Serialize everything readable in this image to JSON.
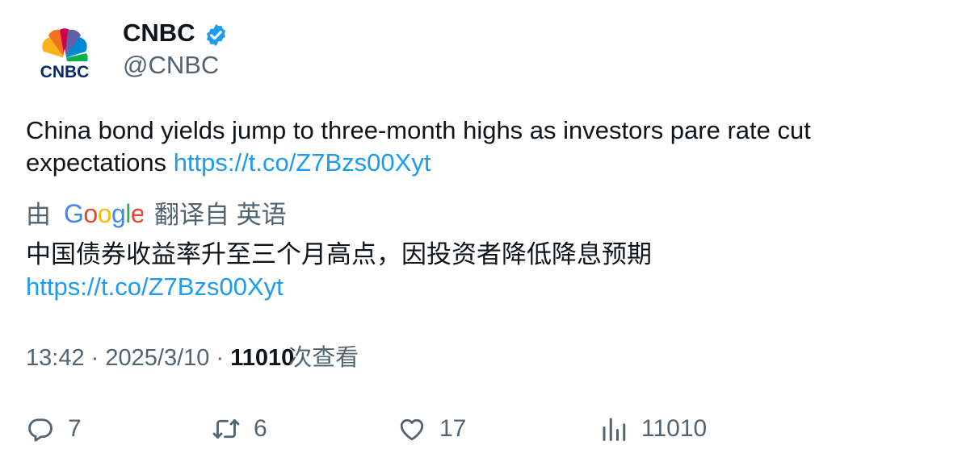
{
  "author": {
    "display_name": "CNBC",
    "handle": "@CNBC",
    "verified_icon": "verified-badge-icon",
    "avatar_logo_text": "CNBC",
    "colors": {
      "verified": "#1d9bf0",
      "link": "#1d9bf0"
    }
  },
  "tweet": {
    "text": "China bond yields jump to three-month highs as investors pare rate cut expectations",
    "link": "https://t.co/Z7Bzs00Xyt"
  },
  "translation": {
    "by_label": "由",
    "provider": "Google",
    "source_label": "翻译自 英语",
    "text": "中国债券收益率升至三个月高点，因投资者降低降息预期",
    "link": "https://t.co/Z7Bzs00Xyt"
  },
  "meta": {
    "time": "13:42",
    "separator": "·",
    "date": "2025/3/10",
    "views_count": "11010",
    "views_label": "次查看"
  },
  "actions": {
    "replies": "7",
    "retweets": "6",
    "likes": "17",
    "views": "11010"
  }
}
